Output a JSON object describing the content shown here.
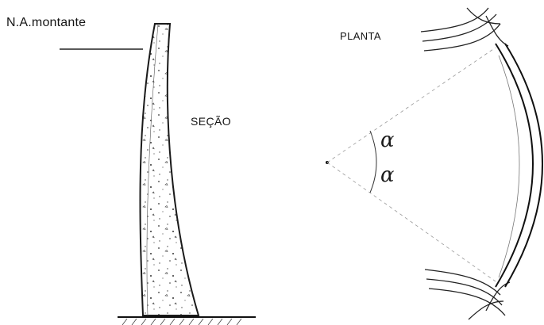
{
  "labels": {
    "water_level": "N.A.montante",
    "section": "SEÇÃO",
    "plan": "PLANTA",
    "angle_upper": "α",
    "angle_lower": "α"
  }
}
